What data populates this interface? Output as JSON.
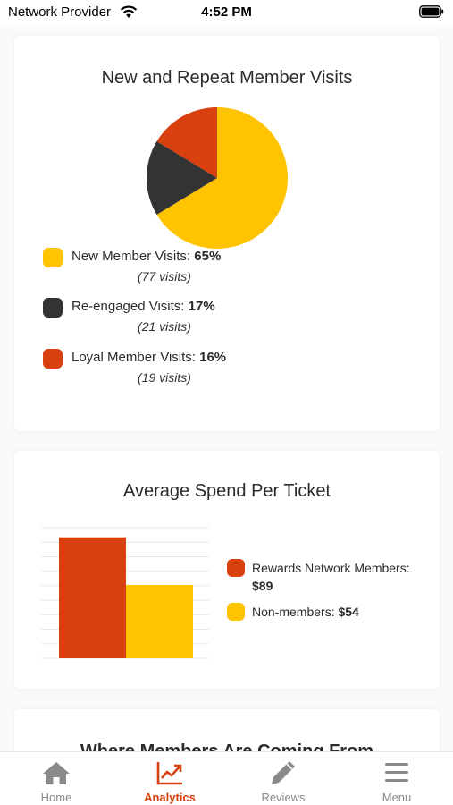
{
  "status_bar": {
    "carrier": "Network Provider",
    "time": "4:52 PM"
  },
  "visits_card": {
    "title": "New and Repeat Member Visits",
    "legend": [
      {
        "label": "New Member Visits: ",
        "percent": "65%",
        "visits": "(77 visits)",
        "color": "#ffc300"
      },
      {
        "label": "Re-engaged Visits: ",
        "percent": "17%",
        "visits": "(21 visits)",
        "color": "#333333"
      },
      {
        "label": "Loyal Member Visits: ",
        "percent": "16%",
        "visits": "(19 visits)",
        "color": "#d9400f"
      }
    ]
  },
  "spend_card": {
    "title": "Average Spend Per Ticket",
    "legend": [
      {
        "label": "Rewards Network Members: ",
        "value": "$89",
        "color": "#d9400f"
      },
      {
        "label": "Non-members: ",
        "value": "$54",
        "color": "#ffc300"
      }
    ]
  },
  "from_card": {
    "title": "Where Members Are Coming From"
  },
  "chart_data": [
    {
      "type": "pie",
      "title": "New and Repeat Member Visits",
      "categories": [
        "New Member Visits",
        "Re-engaged Visits",
        "Loyal Member Visits"
      ],
      "values": [
        65,
        17,
        16
      ],
      "visits": [
        77,
        21,
        19
      ],
      "colors": [
        "#ffc300",
        "#333333",
        "#d9400f"
      ],
      "legend": "bottom"
    },
    {
      "type": "bar",
      "title": "Average Spend Per Ticket",
      "categories": [
        "Rewards Network Members",
        "Non-members"
      ],
      "values": [
        89,
        54
      ],
      "colors": [
        "#d9400f",
        "#ffc300"
      ],
      "ylim": [
        0,
        100
      ],
      "grid": true,
      "legend": "right"
    }
  ],
  "tab_bar": {
    "tabs": [
      {
        "label": "Home",
        "icon": "home-icon",
        "active": false
      },
      {
        "label": "Analytics",
        "icon": "analytics-chart-icon",
        "active": true
      },
      {
        "label": "Reviews",
        "icon": "pencil-icon",
        "active": false
      },
      {
        "label": "Menu",
        "icon": "hamburger-menu-icon",
        "active": false
      }
    ],
    "active_color": "#d9400f",
    "inactive_color": "#8a8a8a"
  }
}
